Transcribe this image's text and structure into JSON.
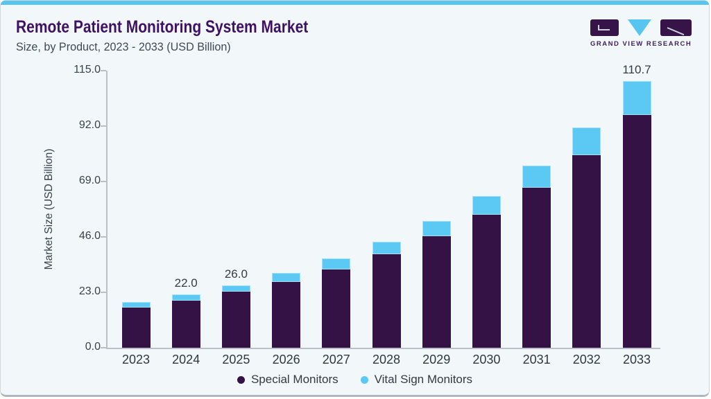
{
  "header": {
    "title": "Remote Patient Monitoring System Market",
    "subtitle": "Size, by Product, 2023 - 2033 (USD Billion)"
  },
  "logo": {
    "text": "GRAND VIEW RESEARCH"
  },
  "colors": {
    "accent_blue": "#56c6f0",
    "brand_purple": "#371448",
    "title_purple": "#3e1162",
    "series_special": "#351246",
    "series_vital": "#5cc8f4",
    "card_background": "#f2f7fa",
    "axis_gray": "#b9c1c6"
  },
  "chart_data": {
    "type": "bar",
    "stacked": true,
    "title": "Remote Patient Monitoring System Market Size, by Product, 2023 - 2033 (USD Billion)",
    "categories": [
      "2023",
      "2024",
      "2025",
      "2026",
      "2027",
      "2028",
      "2029",
      "2030",
      "2031",
      "2032",
      "2033"
    ],
    "series": [
      {
        "name": "Special Monitors",
        "color": "#351246",
        "values": [
          16.8,
          19.5,
          23.3,
          27.4,
          32.6,
          38.8,
          46.3,
          55.2,
          66.5,
          80.0,
          96.6
        ]
      },
      {
        "name": "Vital Sign Monitors",
        "color": "#5cc8f4",
        "values": [
          2.1,
          2.5,
          2.7,
          3.7,
          4.4,
          5.2,
          6.2,
          7.9,
          9.1,
          11.5,
          14.1
        ]
      }
    ],
    "totals": [
      18.9,
      22.0,
      26.0,
      31.1,
      37.0,
      44.0,
      52.5,
      63.1,
      75.6,
      91.5,
      110.7
    ],
    "bar_labels": [
      "",
      "22.0",
      "26.0",
      "",
      "",
      "",
      "",
      "",
      "",
      "",
      "110.7"
    ],
    "xlabel": "",
    "ylabel": "Market Size (USD Billion)",
    "yticks": [
      0,
      23,
      46,
      69,
      92,
      115
    ],
    "ylim": [
      0,
      115
    ],
    "grid": false,
    "legend_position": "bottom"
  }
}
